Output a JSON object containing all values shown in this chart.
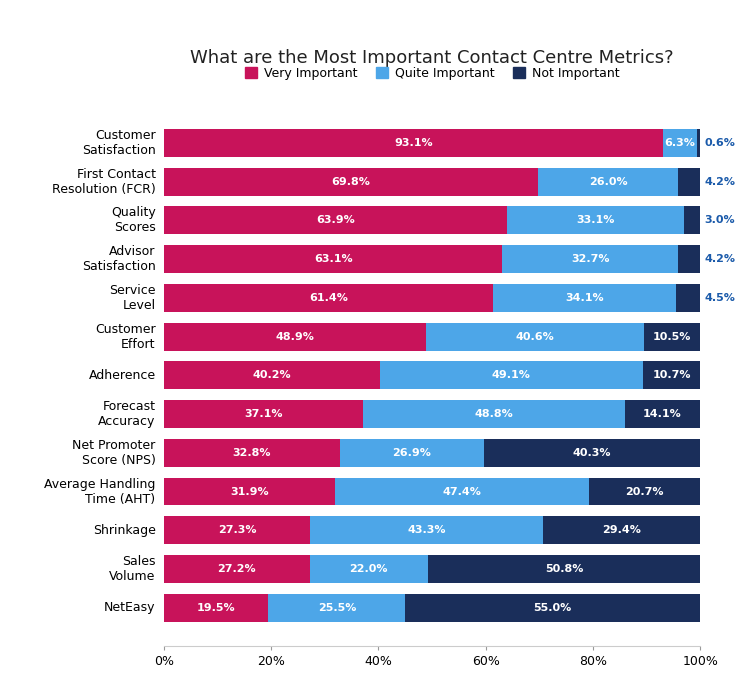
{
  "title": "What are the Most Important Contact Centre Metrics?",
  "categories": [
    "Customer\nSatisfaction",
    "First Contact\nResolution (FCR)",
    "Quality\nScores",
    "Advisor\nSatisfaction",
    "Service\nLevel",
    "Customer\nEffort",
    "Adherence",
    "Forecast\nAccuracy",
    "Net Promoter\nScore (NPS)",
    "Average Handling\nTime (AHT)",
    "Shrinkage",
    "Sales\nVolume",
    "NetEasy"
  ],
  "very_important": [
    93.1,
    69.8,
    63.9,
    63.1,
    61.4,
    48.9,
    40.2,
    37.1,
    32.8,
    31.9,
    27.3,
    27.2,
    19.5
  ],
  "quite_important": [
    6.3,
    26.0,
    33.1,
    32.7,
    34.1,
    40.6,
    49.1,
    48.8,
    26.9,
    47.4,
    43.3,
    22.0,
    25.5
  ],
  "not_important": [
    0.6,
    4.2,
    3.0,
    4.2,
    4.5,
    10.5,
    10.7,
    14.1,
    40.3,
    20.7,
    29.4,
    50.8,
    55.0
  ],
  "color_very": "#C8135A",
  "color_quite": "#4DA6E8",
  "color_not": "#1A2E5A",
  "legend_labels": [
    "Very Important",
    "Quite Important",
    "Not Important"
  ],
  "background_color": "#FFFFFF",
  "bar_height": 0.72,
  "label_outside_color": "#1A5AAA",
  "label_inside_color": "#FFFFFF",
  "title_fontsize": 13,
  "label_fontsize": 8,
  "tick_fontsize": 9
}
